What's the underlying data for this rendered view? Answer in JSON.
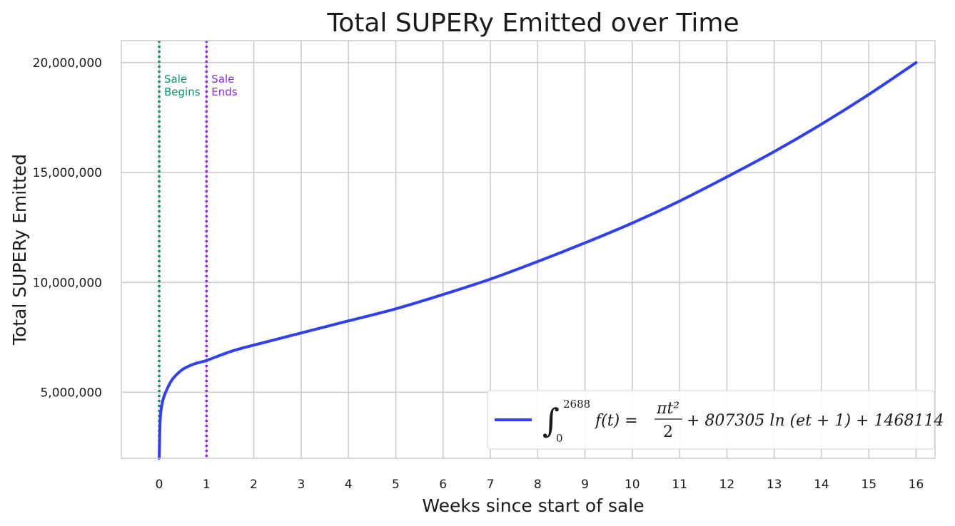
{
  "chart_data": {
    "type": "line",
    "title": "Total SUPERy Emitted over Time",
    "xlabel": "Weeks since start of sale",
    "ylabel": "Total SUPERy Emitted",
    "xlim": [
      -0.8,
      16.4
    ],
    "ylim": [
      2000000,
      21000000
    ],
    "xticks": [
      0,
      1,
      2,
      3,
      4,
      5,
      6,
      7,
      8,
      9,
      10,
      11,
      12,
      13,
      14,
      15,
      16
    ],
    "xtick_labels": [
      "0",
      "1",
      "2",
      "3",
      "4",
      "5",
      "6",
      "7",
      "8",
      "9",
      "10",
      "11",
      "12",
      "13",
      "14",
      "15",
      "16"
    ],
    "yticks": [
      5000000,
      10000000,
      15000000,
      20000000
    ],
    "ytick_labels": [
      "5,000,000",
      "10,000,000",
      "15,000,000",
      "20,000,000"
    ],
    "grid": true,
    "legend_position": "lower-right",
    "series": [
      {
        "name": "∫₀²⁶⁸⁸ f(t) = πt²/2 + 807305 ln(et + 1) + 1468114",
        "color": "#3040f0",
        "x": [
          0,
          0.02,
          0.05,
          0.1,
          0.2,
          0.3,
          0.5,
          0.75,
          1,
          1.5,
          2,
          3,
          4,
          5,
          6,
          7,
          8,
          9,
          10,
          11,
          12,
          13,
          14,
          15,
          16
        ],
        "y": [
          2000000,
          3700000,
          4350000,
          4800000,
          5300000,
          5650000,
          6050000,
          6300000,
          6450000,
          6850000,
          7150000,
          7700000,
          8250000,
          8800000,
          9450000,
          10150000,
          10950000,
          11800000,
          12700000,
          13700000,
          14800000,
          15950000,
          17200000,
          18550000,
          20000000
        ]
      }
    ],
    "annotations": [
      {
        "label_line1": "Sale",
        "label_line2": "Begins",
        "x": 0,
        "color": "#0a9070"
      },
      {
        "label_line1": "Sale",
        "label_line2": "Ends",
        "x": 1,
        "color": "#8a2be2"
      }
    ],
    "legend": {
      "integral_upper": "2688",
      "integral_lower": "0",
      "text_before": "f(t) = ",
      "numerator": "πt²",
      "denominator": "2",
      "text_after": "+ 807305 ln (et + 1) + 1468114"
    }
  }
}
